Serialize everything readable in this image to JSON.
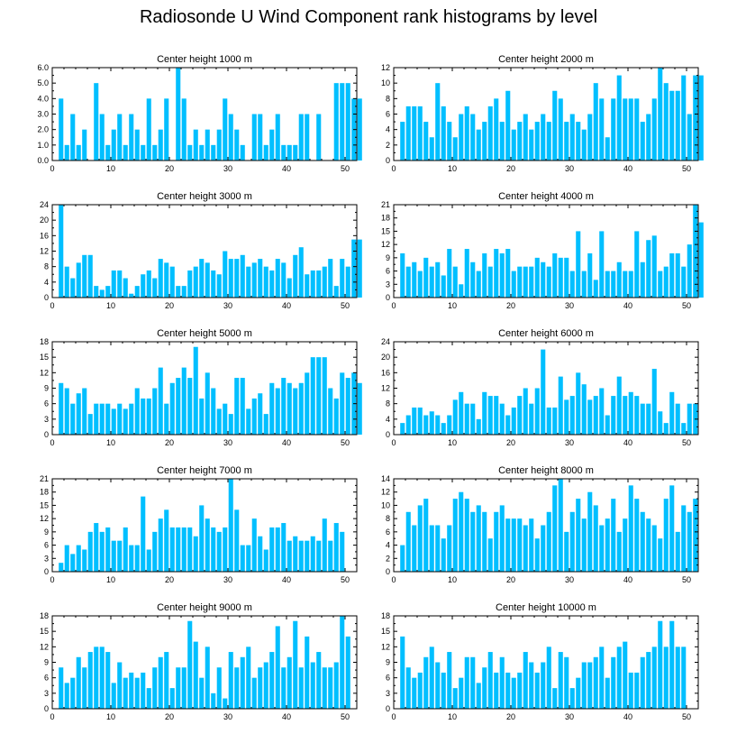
{
  "title": "Radiosonde U Wind Component rank histograms by level",
  "colors": {
    "bar": "#00BFFF",
    "frame": "#000000",
    "background": "#ffffff"
  },
  "chart_data": [
    {
      "type": "bar",
      "title": "Center height 1000 m",
      "ylim": [
        0,
        6
      ],
      "yticks": [
        0,
        1,
        2,
        3,
        4,
        5,
        6
      ],
      "ytick_labels": [
        "0.0",
        "1.0",
        "2.0",
        "3.0",
        "4.0",
        "5.0",
        "6.0"
      ],
      "xlim": [
        0,
        52
      ],
      "xticks": [
        0,
        10,
        20,
        30,
        40,
        50
      ],
      "values": [
        0,
        4,
        1,
        3,
        1,
        2,
        0,
        5,
        3,
        1,
        2,
        3,
        1,
        3,
        2,
        1,
        4,
        1,
        2,
        4,
        0,
        6,
        4,
        1,
        2,
        1,
        2,
        1,
        2,
        4,
        3,
        2,
        1,
        0,
        3,
        3,
        1,
        2,
        3,
        1,
        1,
        1,
        3,
        3,
        0,
        3,
        0,
        0,
        5,
        5,
        5,
        4,
        4
      ]
    },
    {
      "type": "bar",
      "title": "Center height 2000 m",
      "ylim": [
        0,
        12
      ],
      "yticks": [
        0,
        2,
        4,
        6,
        8,
        10,
        12
      ],
      "ytick_labels": [
        "0",
        "2",
        "4",
        "6",
        "8",
        "10",
        "12"
      ],
      "xlim": [
        0,
        52
      ],
      "xticks": [
        0,
        10,
        20,
        30,
        40,
        50
      ],
      "values": [
        0,
        5,
        7,
        7,
        7,
        5,
        3,
        10,
        7,
        5,
        3,
        6,
        7,
        6,
        4,
        5,
        7,
        8,
        5,
        9,
        4,
        5,
        6,
        4,
        5,
        6,
        5,
        9,
        8,
        5,
        6,
        5,
        4,
        6,
        10,
        8,
        3,
        8,
        11,
        8,
        8,
        8,
        5,
        6,
        8,
        12,
        10,
        9,
        9,
        11,
        6,
        11,
        11
      ]
    },
    {
      "type": "bar",
      "title": "Center height 3000 m",
      "ylim": [
        0,
        24
      ],
      "yticks": [
        0,
        4,
        8,
        12,
        16,
        20,
        24
      ],
      "ytick_labels": [
        "0",
        "4",
        "8",
        "12",
        "16",
        "20",
        "24"
      ],
      "xlim": [
        0,
        52
      ],
      "xticks": [
        0,
        10,
        20,
        30,
        40,
        50
      ],
      "values": [
        0,
        24,
        8,
        5,
        9,
        11,
        11,
        3,
        2,
        3,
        7,
        7,
        5,
        1,
        3,
        6,
        7,
        5,
        10,
        9,
        8,
        3,
        3,
        7,
        8,
        10,
        9,
        7,
        6,
        12,
        10,
        10,
        11,
        8,
        9,
        10,
        8,
        7,
        10,
        9,
        5,
        11,
        13,
        6,
        7,
        7,
        8,
        10,
        3,
        10,
        8,
        15,
        15
      ]
    },
    {
      "type": "bar",
      "title": "Center height 4000 m",
      "ylim": [
        0,
        21
      ],
      "yticks": [
        0,
        3,
        6,
        9,
        12,
        15,
        18,
        21
      ],
      "ytick_labels": [
        "0",
        "3",
        "6",
        "9",
        "12",
        "15",
        "18",
        "21"
      ],
      "xlim": [
        0,
        52
      ],
      "xticks": [
        0,
        10,
        20,
        30,
        40,
        50
      ],
      "values": [
        0,
        10,
        7,
        8,
        6,
        9,
        7,
        8,
        5,
        11,
        7,
        3,
        11,
        8,
        6,
        10,
        7,
        11,
        10,
        11,
        6,
        7,
        7,
        7,
        9,
        8,
        7,
        10,
        9,
        9,
        6,
        15,
        6,
        10,
        4,
        15,
        6,
        6,
        8,
        6,
        6,
        15,
        8,
        13,
        14,
        6,
        7,
        10,
        10,
        7,
        12,
        21,
        17
      ]
    },
    {
      "type": "bar",
      "title": "Center height 5000 m",
      "ylim": [
        0,
        18
      ],
      "yticks": [
        0,
        3,
        6,
        9,
        12,
        15,
        18
      ],
      "ytick_labels": [
        "0",
        "3",
        "6",
        "9",
        "12",
        "15",
        "18"
      ],
      "xlim": [
        0,
        52
      ],
      "xticks": [
        0,
        10,
        20,
        30,
        40,
        50
      ],
      "values": [
        0,
        10,
        9,
        6,
        8,
        9,
        4,
        6,
        6,
        6,
        5,
        6,
        5,
        6,
        9,
        7,
        7,
        9,
        13,
        6,
        10,
        11,
        13,
        11,
        17,
        7,
        12,
        9,
        5,
        6,
        4,
        11,
        11,
        5,
        7,
        8,
        4,
        10,
        9,
        11,
        10,
        9,
        10,
        12,
        15,
        15,
        15,
        9,
        7,
        12,
        11,
        12,
        10
      ]
    },
    {
      "type": "bar",
      "title": "Center height 6000 m",
      "ylim": [
        0,
        24
      ],
      "yticks": [
        0,
        4,
        8,
        12,
        16,
        20,
        24
      ],
      "ytick_labels": [
        "0",
        "4",
        "8",
        "12",
        "16",
        "20",
        "24"
      ],
      "xlim": [
        0,
        52
      ],
      "xticks": [
        0,
        10,
        20,
        30,
        40,
        50
      ],
      "values": [
        0,
        3,
        5,
        7,
        7,
        5,
        6,
        5,
        3,
        5,
        9,
        11,
        8,
        8,
        4,
        11,
        10,
        10,
        8,
        5,
        7,
        10,
        12,
        8,
        12,
        22,
        7,
        7,
        15,
        9,
        10,
        16,
        13,
        9,
        10,
        12,
        5,
        10,
        15,
        10,
        11,
        10,
        8,
        8,
        17,
        6,
        3,
        11,
        8,
        3,
        8,
        8,
        0
      ]
    },
    {
      "type": "bar",
      "title": "Center height 7000 m",
      "ylim": [
        0,
        21
      ],
      "yticks": [
        0,
        3,
        6,
        9,
        12,
        15,
        18,
        21
      ],
      "ytick_labels": [
        "0",
        "3",
        "6",
        "9",
        "12",
        "15",
        "18",
        "21"
      ],
      "xlim": [
        0,
        52
      ],
      "xticks": [
        0,
        10,
        20,
        30,
        40,
        50
      ],
      "values": [
        0,
        2,
        6,
        4,
        6,
        5,
        9,
        11,
        9,
        10,
        7,
        7,
        10,
        6,
        6,
        17,
        5,
        9,
        12,
        14,
        10,
        10,
        10,
        10,
        8,
        15,
        12,
        10,
        9,
        10,
        21,
        14,
        6,
        6,
        12,
        8,
        5,
        10,
        10,
        11,
        7,
        8,
        7,
        7,
        8,
        7,
        12,
        7,
        11,
        9,
        0,
        0,
        0
      ]
    },
    {
      "type": "bar",
      "title": "Center height 8000 m",
      "ylim": [
        0,
        14
      ],
      "yticks": [
        0,
        2,
        4,
        6,
        8,
        10,
        12,
        14
      ],
      "ytick_labels": [
        "0",
        "2",
        "4",
        "6",
        "8",
        "10",
        "12",
        "14"
      ],
      "xlim": [
        0,
        52
      ],
      "xticks": [
        0,
        10,
        20,
        30,
        40,
        50
      ],
      "values": [
        0,
        4,
        9,
        7,
        10,
        11,
        7,
        7,
        5,
        7,
        11,
        12,
        11,
        9,
        10,
        9,
        5,
        9,
        10,
        8,
        8,
        8,
        7,
        8,
        5,
        7,
        9,
        13,
        14,
        6,
        9,
        11,
        8,
        12,
        10,
        7,
        8,
        11,
        6,
        8,
        13,
        11,
        9,
        8,
        7,
        5,
        11,
        13,
        6,
        10,
        9,
        11,
        0
      ]
    },
    {
      "type": "bar",
      "title": "Center height 9000 m",
      "ylim": [
        0,
        18
      ],
      "yticks": [
        0,
        3,
        6,
        9,
        12,
        15,
        18
      ],
      "ytick_labels": [
        "0",
        "3",
        "6",
        "9",
        "12",
        "15",
        "18"
      ],
      "xlim": [
        0,
        52
      ],
      "xticks": [
        0,
        10,
        20,
        30,
        40,
        50
      ],
      "values": [
        0,
        8,
        5,
        6,
        10,
        8,
        11,
        12,
        12,
        11,
        5,
        9,
        6,
        7,
        6,
        7,
        4,
        8,
        10,
        11,
        4,
        8,
        8,
        17,
        13,
        6,
        12,
        3,
        8,
        2,
        11,
        8,
        10,
        12,
        6,
        8,
        9,
        11,
        16,
        8,
        10,
        17,
        8,
        14,
        9,
        11,
        8,
        8,
        9,
        18,
        14,
        0,
        0
      ]
    },
    {
      "type": "bar",
      "title": "Center height 10000 m",
      "ylim": [
        0,
        18
      ],
      "yticks": [
        0,
        3,
        6,
        9,
        12,
        15,
        18
      ],
      "ytick_labels": [
        "0",
        "3",
        "6",
        "9",
        "12",
        "15",
        "18"
      ],
      "xlim": [
        0,
        52
      ],
      "xticks": [
        0,
        10,
        20,
        30,
        40,
        50
      ],
      "values": [
        0,
        14,
        8,
        6,
        7,
        10,
        12,
        9,
        7,
        11,
        4,
        6,
        10,
        10,
        5,
        8,
        11,
        7,
        10,
        7,
        6,
        7,
        11,
        9,
        7,
        9,
        12,
        4,
        11,
        10,
        4,
        6,
        9,
        9,
        10,
        12,
        6,
        10,
        12,
        13,
        7,
        7,
        10,
        11,
        12,
        17,
        12,
        17,
        12,
        12,
        0,
        0,
        0
      ]
    }
  ]
}
